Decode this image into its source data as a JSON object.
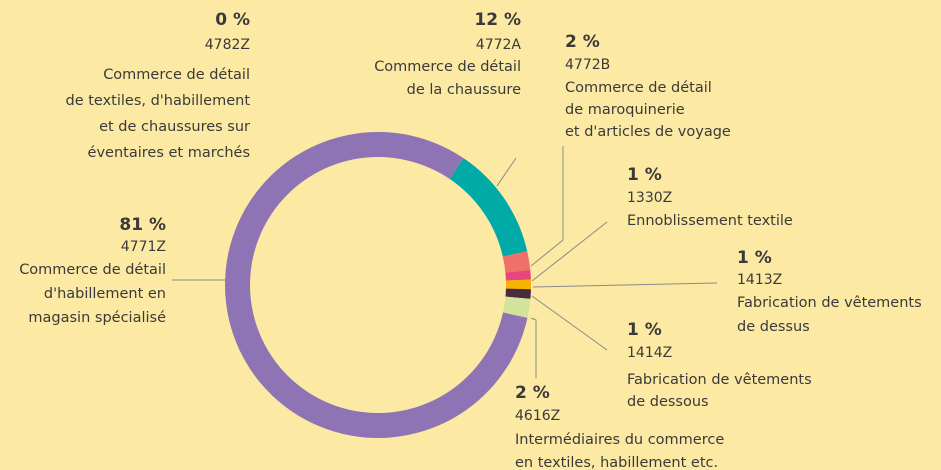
{
  "chart_data": {
    "type": "pie",
    "donut": true,
    "categories": [
      "4782Z",
      "4772A",
      "4772B",
      "1330Z",
      "1413Z",
      "1414Z",
      "4616Z",
      "4771Z"
    ],
    "descriptions": [
      [
        "Commerce de détail",
        "de textiles, d'habillement",
        "et de chaussures sur",
        "éventaires et marchés"
      ],
      [
        "Commerce de détail",
        "de la chaussure"
      ],
      [
        "Commerce de détail",
        "de maroquinerie",
        "et d'articles de voyage"
      ],
      [
        "Ennoblissement textile"
      ],
      [
        "Fabrication de vêtements",
        "de dessus"
      ],
      [
        "Fabrication de vêtements",
        "de dessous"
      ],
      [
        "Intermédiaires du commerce",
        "en textiles, habillement etc."
      ],
      [
        "Commerce de détail",
        "d'habillement en",
        "magasin spécialisé"
      ]
    ],
    "values": [
      0,
      12,
      2,
      1,
      1,
      1,
      2,
      81
    ],
    "value_labels": [
      "0 %",
      "12 %",
      "2 %",
      "1 %",
      "1 %",
      "1 %",
      "2 %",
      "81 %"
    ],
    "colors": [
      "#8e73b5",
      "#00aaa6",
      "#ef6f6a",
      "#e8457c",
      "#f5b400",
      "#4b2a3c",
      "#d2e39c",
      "#8e73b5"
    ]
  }
}
